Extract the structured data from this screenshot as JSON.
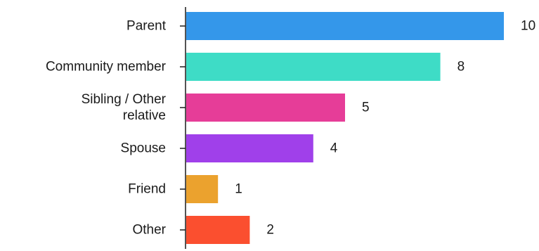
{
  "chart_data": {
    "type": "bar",
    "orientation": "horizontal",
    "categories": [
      "Parent",
      "Community member",
      "Sibling / Other relative",
      "Spouse",
      "Friend",
      "Other"
    ],
    "category_label_lines": [
      [
        "Parent"
      ],
      [
        "Community member"
      ],
      [
        "Sibling / Other",
        "relative"
      ],
      [
        "Spouse"
      ],
      [
        "Friend"
      ],
      [
        "Other"
      ]
    ],
    "values": [
      10,
      8,
      5,
      4,
      1,
      2
    ],
    "colors": [
      "#3497ea",
      "#3edcc6",
      "#e63d98",
      "#a040ea",
      "#eba22e",
      "#fb4f2f"
    ],
    "xlim": [
      0,
      10
    ],
    "grid": false,
    "legend": "none",
    "title": "",
    "xlabel": "",
    "ylabel": ""
  }
}
